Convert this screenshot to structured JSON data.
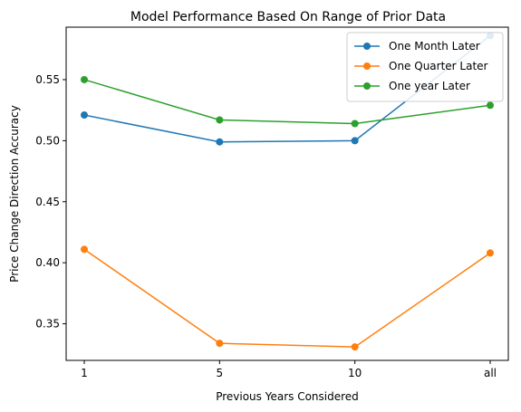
{
  "chart_data": {
    "type": "line",
    "title": "Model Performance Based On Range of Prior Data",
    "xlabel": "Previous Years Considered",
    "ylabel": "Price Change Direction Accuracy",
    "categories": [
      "1",
      "5",
      "10",
      "all"
    ],
    "ylim": [
      0.32,
      0.593
    ],
    "yticks": [
      0.35,
      0.4,
      0.45,
      0.5,
      0.55
    ],
    "ytick_labels": [
      "0.35",
      "0.40",
      "0.45",
      "0.50",
      "0.55"
    ],
    "grid": false,
    "legend_position": "top-right",
    "series": [
      {
        "name": "One Month Later",
        "color": "#1f77b4",
        "values": [
          0.521,
          0.499,
          0.5,
          0.586
        ]
      },
      {
        "name": "One Quarter Later",
        "color": "#ff7f0e",
        "values": [
          0.411,
          0.334,
          0.331,
          0.408
        ]
      },
      {
        "name": "One year Later",
        "color": "#2ca02c",
        "values": [
          0.55,
          0.517,
          0.514,
          0.529
        ]
      }
    ]
  }
}
